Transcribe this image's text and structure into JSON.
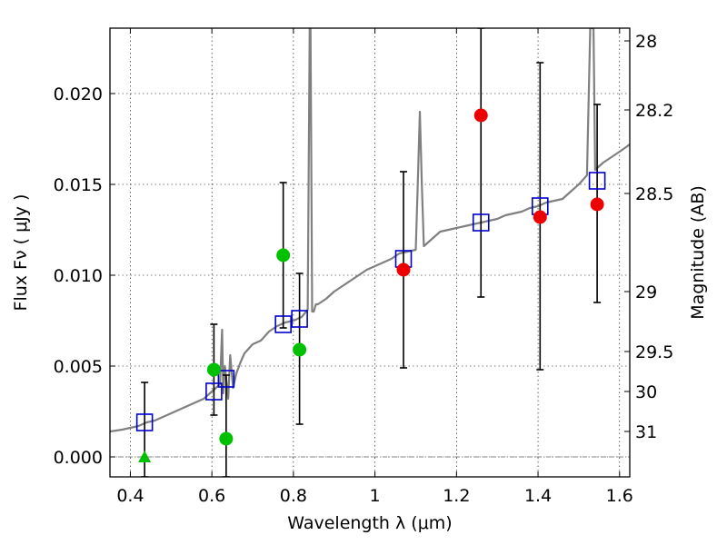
{
  "chart_data": {
    "type": "scatter",
    "xlabel": "Wavelength  λ (μm)",
    "ylabel": "Flux  Fν  ( μJy )",
    "y2label": "Magnitude (AB)",
    "xlim": [
      0.35,
      1.625
    ],
    "ylim": [
      -0.0011,
      0.0236
    ],
    "xticks": [
      0.4,
      0.6,
      0.8,
      1.0,
      1.2,
      1.4,
      1.6
    ],
    "xtick_labels": [
      "0.4",
      "0.6",
      "0.8",
      "1",
      "1.2",
      "1.4",
      "1.6"
    ],
    "yticks": [
      0.0,
      0.005,
      0.01,
      0.015,
      0.02
    ],
    "ytick_labels": [
      "0.000",
      "0.005",
      "0.010",
      "0.015",
      "0.020"
    ],
    "y2ticks": [
      {
        "label": "28",
        "flux": 0.0229
      },
      {
        "label": "28.2",
        "flux": 0.0191
      },
      {
        "label": "28.5",
        "flux": 0.0145
      },
      {
        "label": "29",
        "flux": 0.0091
      },
      {
        "label": "29.5",
        "flux": 0.0058
      },
      {
        "label": "30",
        "flux": 0.0036
      },
      {
        "label": "31",
        "flux": 0.0014
      }
    ],
    "grid": true,
    "grid_style": "dotted",
    "colors": {
      "model": "#808080",
      "band_flux": "#0000cc",
      "green": "#00c000",
      "red": "#ee0000",
      "errorbar": "#000000",
      "zero_line": "#808080"
    },
    "model_spectrum": {
      "x": [
        0.35,
        0.38,
        0.4,
        0.42,
        0.44,
        0.46,
        0.48,
        0.5,
        0.52,
        0.54,
        0.56,
        0.58,
        0.6,
        0.62,
        0.625,
        0.628,
        0.632,
        0.64,
        0.645,
        0.652,
        0.66,
        0.67,
        0.68,
        0.7,
        0.72,
        0.74,
        0.76,
        0.78,
        0.8,
        0.82,
        0.835,
        0.84,
        0.842,
        0.846,
        0.85,
        0.855,
        0.86,
        0.88,
        0.9,
        0.92,
        0.94,
        0.96,
        0.98,
        1.0,
        1.02,
        1.04,
        1.06,
        1.08,
        1.1,
        1.105,
        1.11,
        1.115,
        1.12,
        1.14,
        1.16,
        1.18,
        1.2,
        1.22,
        1.24,
        1.26,
        1.28,
        1.3,
        1.32,
        1.34,
        1.36,
        1.38,
        1.4,
        1.42,
        1.44,
        1.46,
        1.48,
        1.5,
        1.52,
        1.528,
        1.532,
        1.536,
        1.54,
        1.56,
        1.58,
        1.6,
        1.625
      ],
      "y": [
        0.0014,
        0.0015,
        0.0016,
        0.0017,
        0.0019,
        0.002,
        0.0022,
        0.0024,
        0.0026,
        0.0028,
        0.003,
        0.0032,
        0.0036,
        0.004,
        0.007,
        0.0035,
        0.005,
        0.0032,
        0.0056,
        0.0038,
        0.0046,
        0.0052,
        0.0057,
        0.0062,
        0.0064,
        0.0069,
        0.0072,
        0.0074,
        0.0075,
        0.0077,
        0.0081,
        0.0236,
        0.0236,
        0.008,
        0.008,
        0.0084,
        0.0084,
        0.0087,
        0.0091,
        0.0094,
        0.0097,
        0.01,
        0.0103,
        0.0105,
        0.0107,
        0.0109,
        0.0112,
        0.0113,
        0.0114,
        0.015,
        0.019,
        0.015,
        0.0116,
        0.012,
        0.0124,
        0.0125,
        0.0126,
        0.0127,
        0.0128,
        0.0129,
        0.013,
        0.0131,
        0.0133,
        0.0134,
        0.0135,
        0.0137,
        0.0138,
        0.014,
        0.0141,
        0.0142,
        0.0146,
        0.015,
        0.0155,
        0.0236,
        0.0236,
        0.0236,
        0.0158,
        0.0162,
        0.0165,
        0.0168,
        0.0172
      ]
    },
    "series": [
      {
        "marker": "square",
        "points": [
          {
            "x": 0.435,
            "y": 0.0019
          },
          {
            "x": 0.605,
            "y": 0.0036
          },
          {
            "x": 0.635,
            "y": 0.0043
          },
          {
            "x": 0.775,
            "y": 0.0073
          },
          {
            "x": 0.815,
            "y": 0.0076
          },
          {
            "x": 1.07,
            "y": 0.0109
          },
          {
            "x": 1.26,
            "y": 0.0129
          },
          {
            "x": 1.405,
            "y": 0.0138
          },
          {
            "x": 1.545,
            "y": 0.0152
          }
        ]
      },
      {
        "marker": "circle",
        "color_key": "green",
        "points": [
          {
            "x": 0.605,
            "y": 0.0048,
            "ylo": 0.0023,
            "yhi": 0.0073
          },
          {
            "x": 0.635,
            "y": 0.001,
            "ylo": -0.0011,
            "yhi": 0.0045
          },
          {
            "x": 0.775,
            "y": 0.0111,
            "ylo": 0.0071,
            "yhi": 0.0151
          },
          {
            "x": 0.815,
            "y": 0.0059,
            "ylo": 0.0018,
            "yhi": 0.0101
          }
        ]
      },
      {
        "marker": "triangle",
        "color_key": "green",
        "points": [
          {
            "x": 0.435,
            "y": 0.0,
            "ylo": -0.0011,
            "yhi": 0.0041
          }
        ]
      },
      {
        "marker": "circle",
        "color_key": "red",
        "points": [
          {
            "x": 1.07,
            "y": 0.0103,
            "ylo": 0.0049,
            "yhi": 0.0157
          },
          {
            "x": 1.26,
            "y": 0.0188,
            "ylo": 0.0088,
            "yhi": 0.0236
          },
          {
            "x": 1.405,
            "y": 0.0132,
            "ylo": 0.0048,
            "yhi": 0.0217
          },
          {
            "x": 1.545,
            "y": 0.0139,
            "ylo": 0.0085,
            "yhi": 0.0194
          }
        ]
      }
    ]
  }
}
